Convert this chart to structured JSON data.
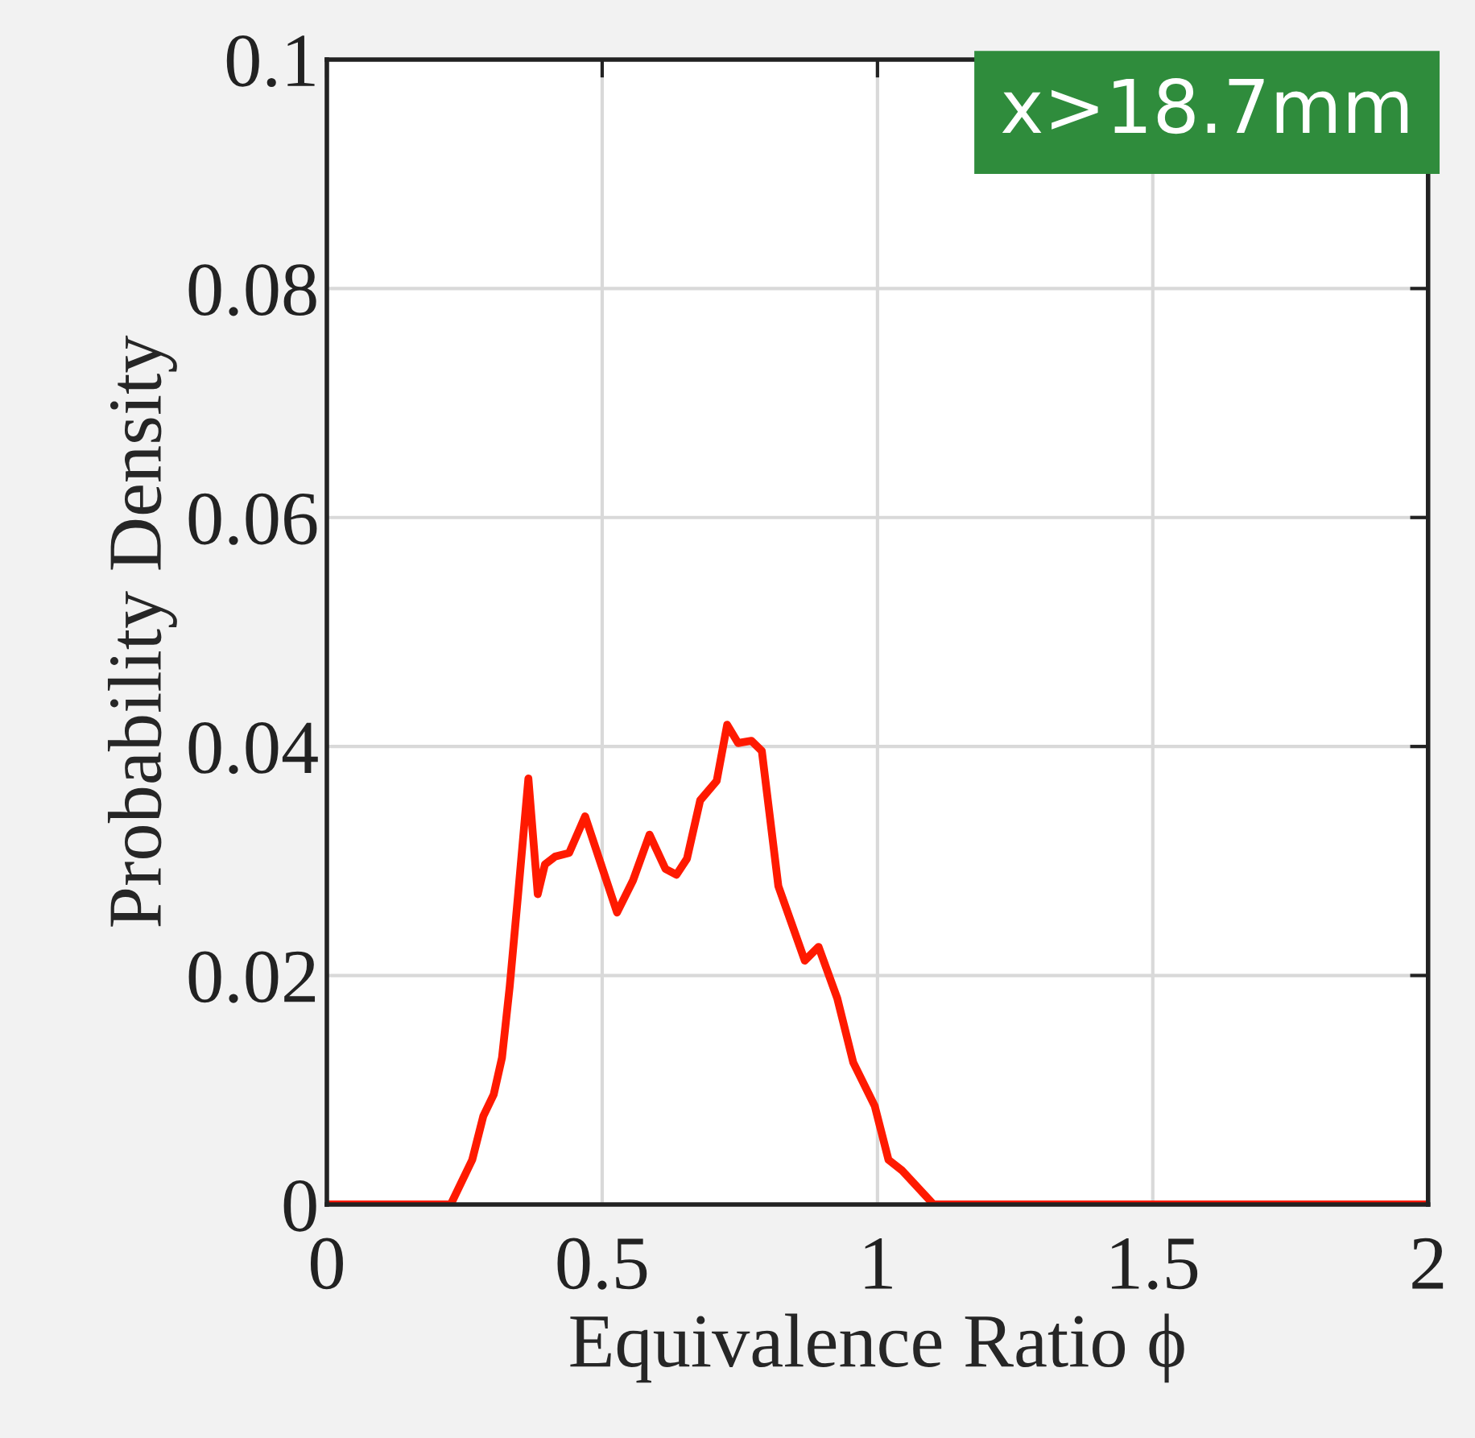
{
  "chart_data": {
    "type": "line",
    "xlabel": "Equivalence Ratio ϕ",
    "ylabel": "Probability Density",
    "xlim": [
      0,
      2
    ],
    "ylim": [
      0,
      0.1
    ],
    "xticks": [
      0,
      0.5,
      1,
      1.5,
      2
    ],
    "yticks": [
      0,
      0.02,
      0.04,
      0.06,
      0.08,
      0.1
    ],
    "grid": true,
    "annotations": [
      "x>18.7mm"
    ],
    "series": [
      {
        "color": "#ff1a00",
        "x": [
          0,
          0.225,
          0.264,
          0.284,
          0.303,
          0.318,
          0.332,
          0.347,
          0.366,
          0.383,
          0.396,
          0.415,
          0.44,
          0.469,
          0.498,
          0.527,
          0.556,
          0.586,
          0.615,
          0.635,
          0.654,
          0.678,
          0.708,
          0.727,
          0.747,
          0.771,
          0.79,
          0.82,
          0.868,
          0.893,
          0.927,
          0.956,
          0.995,
          1.02,
          1.044,
          1.102,
          2
        ],
        "values": [
          0,
          0,
          0.0039,
          0.0077,
          0.0096,
          0.0128,
          0.019,
          0.0269,
          0.0372,
          0.0271,
          0.0297,
          0.0304,
          0.0307,
          0.0339,
          0.0297,
          0.0255,
          0.0283,
          0.0323,
          0.0293,
          0.0288,
          0.0302,
          0.0353,
          0.037,
          0.0419,
          0.0403,
          0.0405,
          0.0396,
          0.0278,
          0.0213,
          0.0225,
          0.018,
          0.0124,
          0.0086,
          0.0039,
          0.003,
          0,
          0
        ]
      }
    ]
  }
}
